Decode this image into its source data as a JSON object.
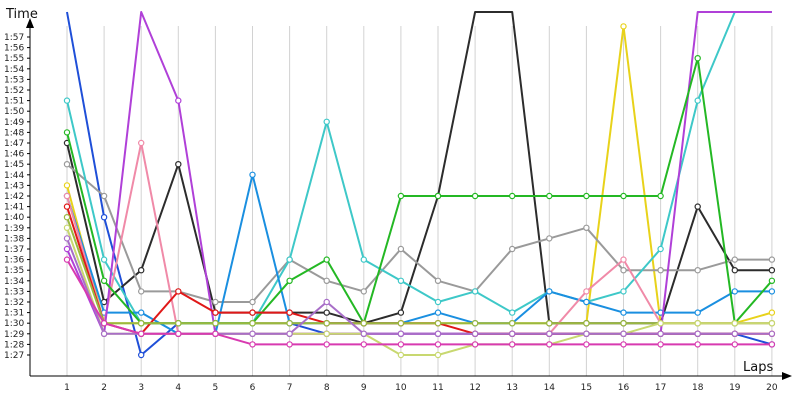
{
  "chart_data": {
    "type": "line",
    "xlabel": "Laps",
    "ylabel": "Time",
    "x": [
      1,
      2,
      3,
      4,
      5,
      6,
      7,
      8,
      9,
      10,
      11,
      12,
      13,
      14,
      15,
      16,
      17,
      18,
      19,
      20
    ],
    "y_tick_labels": [
      "1:27",
      "1:28",
      "1:29",
      "1:30",
      "1:31",
      "1:32",
      "1:33",
      "1:34",
      "1:35",
      "1:36",
      "1:37",
      "1:38",
      "1:39",
      "1:40",
      "1:41",
      "1:42",
      "1:43",
      "1:44",
      "1:45",
      "1:46",
      "1:47",
      "1:48",
      "1:49",
      "1:50",
      "1:51",
      "1:52",
      "1:53",
      "1:54",
      "1:55",
      "1:56",
      "1:57"
    ],
    "ylim_seconds": [
      86,
      119
    ],
    "grid": "vertical",
    "series": [
      {
        "color": "#1f4fd8",
        "values": [
          121,
          100,
          87,
          90,
          90,
          90,
          90,
          89,
          89,
          89,
          89,
          89,
          89,
          89,
          89,
          89,
          89,
          89,
          89,
          88
        ]
      },
      {
        "color": "#e8d21a",
        "values": [
          103,
          90,
          90,
          90,
          90,
          90,
          90,
          90,
          90,
          90,
          90,
          90,
          90,
          90,
          90,
          118,
          90,
          90,
          90,
          91
        ]
      },
      {
        "color": "#2c2c2c",
        "values": [
          107,
          92,
          95,
          105,
          91,
          91,
          91,
          91,
          90,
          91,
          102,
          125,
          125,
          90,
          90,
          90,
          90,
          101,
          95,
          95
        ]
      },
      {
        "color": "#9a9a9a",
        "values": [
          105,
          102,
          93,
          93,
          92,
          92,
          96,
          94,
          93,
          97,
          94,
          93,
          97,
          98,
          99,
          95,
          95,
          95,
          96,
          96
        ]
      },
      {
        "color": "#3ec8c8",
        "values": [
          111,
          96,
          90,
          90,
          90,
          90,
          96,
          109,
          96,
          94,
          92,
          93,
          91,
          93,
          92,
          93,
          97,
          111,
          125,
          125
        ]
      },
      {
        "color": "#1a8fe0",
        "values": [
          102,
          91,
          91,
          89,
          89,
          104,
          90,
          90,
          90,
          90,
          91,
          90,
          90,
          93,
          92,
          91,
          91,
          91,
          93,
          93
        ]
      },
      {
        "color": "#f08aa8",
        "values": [
          102,
          90,
          107,
          89,
          89,
          89,
          89,
          89,
          89,
          89,
          89,
          89,
          89,
          89,
          93,
          96,
          90,
          90,
          90,
          90
        ]
      },
      {
        "color": "#b040d8",
        "values": [
          97,
          89,
          125,
          111,
          89,
          89,
          89,
          89,
          89,
          89,
          89,
          89,
          89,
          89,
          89,
          89,
          89,
          125,
          125,
          125
        ]
      },
      {
        "color": "#24b824",
        "values": [
          108,
          94,
          90,
          90,
          90,
          90,
          94,
          96,
          90,
          102,
          102,
          102,
          102,
          102,
          102,
          102,
          102,
          115,
          90,
          94
        ]
      },
      {
        "color": "#e01818",
        "values": [
          101,
          90,
          89,
          93,
          91,
          91,
          91,
          90,
          90,
          90,
          90,
          89,
          89,
          89,
          89,
          89,
          89,
          89,
          89,
          89
        ]
      },
      {
        "color": "#9ab840",
        "values": [
          100,
          90,
          90,
          90,
          90,
          90,
          90,
          90,
          90,
          90,
          90,
          90,
          90,
          90,
          90,
          90,
          90,
          90,
          90,
          90
        ]
      },
      {
        "color": "#c8d870",
        "values": [
          99,
          89,
          89,
          89,
          89,
          89,
          89,
          89,
          89,
          87,
          87,
          88,
          88,
          88,
          89,
          89,
          90,
          90,
          90,
          90
        ]
      },
      {
        "color": "#a86ec8",
        "values": [
          98,
          89,
          89,
          89,
          89,
          89,
          89,
          92,
          89,
          89,
          89,
          89,
          89,
          89,
          89,
          89,
          89,
          89,
          89,
          89
        ]
      },
      {
        "color": "#d83ab0",
        "values": [
          96,
          90,
          89,
          89,
          89,
          88,
          88,
          88,
          88,
          88,
          88,
          88,
          88,
          88,
          88,
          88,
          88,
          88,
          88,
          88
        ]
      }
    ]
  }
}
